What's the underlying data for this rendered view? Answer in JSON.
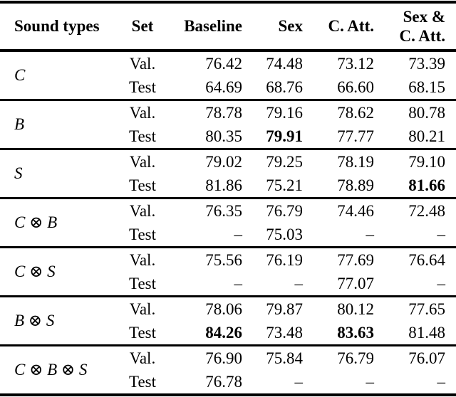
{
  "table": {
    "header": {
      "sound_types": "Sound types",
      "set": "Set",
      "baseline": "Baseline",
      "sex": "Sex",
      "c_att": "C. Att.",
      "sex_c_att_line1": "Sex &",
      "sex_c_att_line2": "C. Att."
    },
    "groups": [
      {
        "sound": "C",
        "rows": [
          {
            "set": "Val.",
            "values": [
              "76.42",
              "74.48",
              "73.12",
              "73.39"
            ],
            "bold": []
          },
          {
            "set": "Test",
            "values": [
              "64.69",
              "68.76",
              "66.60",
              "68.15"
            ],
            "bold": []
          }
        ]
      },
      {
        "sound": "B",
        "rows": [
          {
            "set": "Val.",
            "values": [
              "78.78",
              "79.16",
              "78.62",
              "80.78"
            ],
            "bold": []
          },
          {
            "set": "Test",
            "values": [
              "80.35",
              "79.91",
              "77.77",
              "80.21"
            ],
            "bold": [
              1
            ]
          }
        ]
      },
      {
        "sound": "S",
        "rows": [
          {
            "set": "Val.",
            "values": [
              "79.02",
              "79.25",
              "78.19",
              "79.10"
            ],
            "bold": []
          },
          {
            "set": "Test",
            "values": [
              "81.86",
              "75.21",
              "78.89",
              "81.66"
            ],
            "bold": [
              3
            ]
          }
        ]
      },
      {
        "sound": "C ⊗ B",
        "rows": [
          {
            "set": "Val.",
            "values": [
              "76.35",
              "76.79",
              "74.46",
              "72.48"
            ],
            "bold": []
          },
          {
            "set": "Test",
            "values": [
              "–",
              "75.03",
              "–",
              "–"
            ],
            "bold": []
          }
        ]
      },
      {
        "sound": "C ⊗ S",
        "rows": [
          {
            "set": "Val.",
            "values": [
              "75.56",
              "76.19",
              "77.69",
              "76.64"
            ],
            "bold": []
          },
          {
            "set": "Test",
            "values": [
              "–",
              "–",
              "77.07",
              "–"
            ],
            "bold": []
          }
        ]
      },
      {
        "sound": "B ⊗ S",
        "rows": [
          {
            "set": "Val.",
            "values": [
              "78.06",
              "79.87",
              "80.12",
              "77.65"
            ],
            "bold": []
          },
          {
            "set": "Test",
            "values": [
              "84.26",
              "73.48",
              "83.63",
              "81.48"
            ],
            "bold": [
              0,
              2
            ]
          }
        ]
      },
      {
        "sound": "C ⊗ B ⊗ S",
        "rows": [
          {
            "set": "Val.",
            "values": [
              "76.90",
              "75.84",
              "76.79",
              "76.07"
            ],
            "bold": []
          },
          {
            "set": "Test",
            "values": [
              "76.78",
              "–",
              "–",
              "–"
            ],
            "bold": []
          }
        ]
      }
    ],
    "colors": {
      "text": "#000000",
      "background": "#ffffff",
      "rule": "#000000"
    }
  }
}
